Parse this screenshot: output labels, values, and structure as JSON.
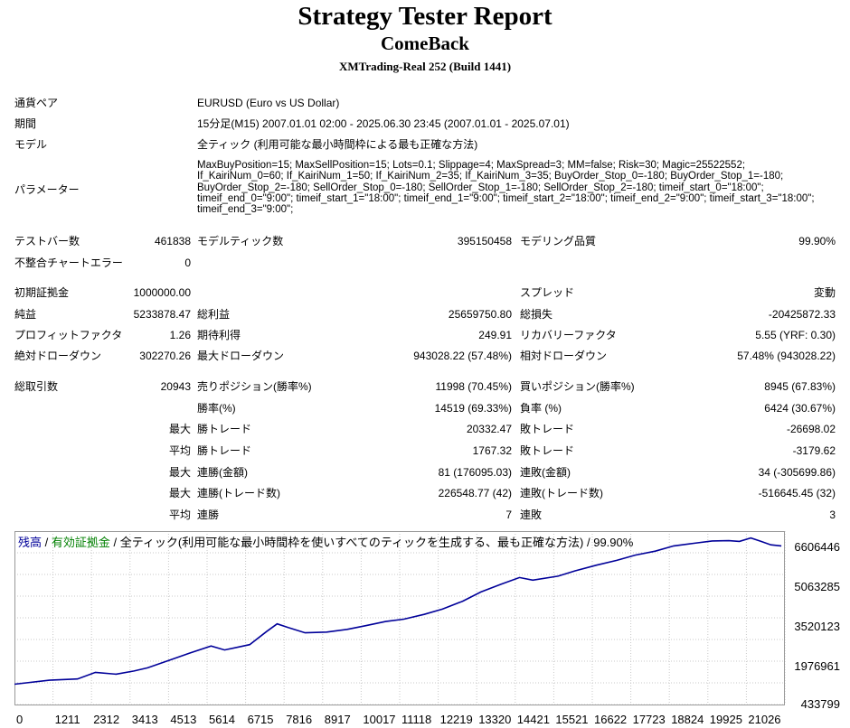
{
  "header": {
    "title": "Strategy Tester Report",
    "ea_name": "ComeBack",
    "server": "XMTrading-Real 252 (Build 1441)"
  },
  "info": {
    "symbol_label": "通貨ペア",
    "symbol_value": "EURUSD (Euro vs US Dollar)",
    "period_label": "期間",
    "period_value": "15分足(M15) 2007.01.01 02:00 - 2025.06.30 23:45 (2007.01.01 - 2025.07.01)",
    "model_label": "モデル",
    "model_value": "全ティック (利用可能な最小時間枠による最も正確な方法)",
    "params_label": "パラメーター",
    "params_value": "MaxBuyPosition=15; MaxSellPosition=15; Lots=0.1; Slippage=4; MaxSpread=3; MM=false; Risk=30; Magic=25522552; If_KairiNum_0=60; If_KairiNum_1=50; If_KairiNum_2=35; If_KairiNum_3=35; BuyOrder_Stop_0=-180; BuyOrder_Stop_1=-180; BuyOrder_Stop_2=-180; SellOrder_Stop_0=-180; SellOrder_Stop_1=-180; SellOrder_Stop_2=-180; timeif_start_0=\"18:00\"; timeif_end_0=\"9:00\"; timeif_start_1=\"18:00\"; timeif_end_1=\"9:00\"; timeif_start_2=\"18:00\"; timeif_end_2=\"9:00\"; timeif_start_3=\"18:00\"; timeif_end_3=\"9:00\";"
  },
  "stats": {
    "bars_label": "テストバー数",
    "bars_value": "461838",
    "ticks_label": "モデルティック数",
    "ticks_value": "395150458",
    "quality_label": "モデリング品質",
    "quality_value": "99.90%",
    "mismatch_label": "不整合チャートエラー",
    "mismatch_value": "0",
    "deposit_label": "初期証拠金",
    "deposit_value": "1000000.00",
    "spread_label": "スプレッド",
    "spread_value": "変動",
    "net_label": "純益",
    "net_value": "5233878.47",
    "gross_profit_label": "総利益",
    "gross_profit_value": "25659750.80",
    "gross_loss_label": "総損失",
    "gross_loss_value": "-20425872.33",
    "pf_label": "プロフィットファクタ",
    "pf_value": "1.26",
    "expected_label": "期待利得",
    "expected_value": "249.91",
    "recovery_label": "リカバリーファクタ",
    "recovery_value": "5.55 (YRF: 0.30)",
    "abs_dd_label": "絶対ドローダウン",
    "abs_dd_value": "302270.26",
    "max_dd_label": "最大ドローダウン",
    "max_dd_value": "943028.22 (57.48%)",
    "rel_dd_label": "相対ドローダウン",
    "rel_dd_value": "57.48% (943028.22)",
    "total_trades_label": "総取引数",
    "total_trades_value": "20943",
    "short_label": "売りポジション(勝率%)",
    "short_value": "11998 (70.45%)",
    "long_label": "買いポジション(勝率%)",
    "long_value": "8945 (67.83%)",
    "win_rate_label": "勝率(%)",
    "win_rate_value": "14519 (69.33%)",
    "loss_rate_label": "負率 (%)",
    "loss_rate_value": "6424 (30.67%)",
    "max_label": "最大",
    "avg_label": "平均",
    "max_win_label": "勝トレード",
    "max_win_value": "20332.47",
    "max_loss_label": "敗トレード",
    "max_loss_value": "-26698.02",
    "avg_win_label": "勝トレード",
    "avg_win_value": "1767.32",
    "avg_loss_label": "敗トレード",
    "avg_loss_value": "-3179.62",
    "max_consec_win_amt_label": "連勝(金額)",
    "max_consec_win_amt_value": "81 (176095.03)",
    "max_consec_loss_amt_label": "連敗(金額)",
    "max_consec_loss_amt_value": "34 (-305699.86)",
    "max_consec_win_cnt_label": "連勝(トレード数)",
    "max_consec_win_cnt_value": "226548.77 (42)",
    "max_consec_loss_cnt_label": "連敗(トレード数)",
    "max_consec_loss_cnt_value": "-516645.45 (32)",
    "avg_consec_win_label": "連勝",
    "avg_consec_win_value": "7",
    "avg_consec_loss_label": "連敗",
    "avg_consec_loss_value": "3"
  },
  "graph": {
    "legend_balance": "残高",
    "legend_sep1": " / ",
    "legend_equity": "有効証拠金",
    "legend_rest": " / 全ティック(利用可能な最小時間枠を使いすべてのティックを生成する、最も正確な方法) / 99.90%",
    "colors": {
      "balance": "#000099",
      "equity": "#008000",
      "grid": "#c8c8c8"
    },
    "y_ticks": [
      "6606446",
      "5063285",
      "3520123",
      "1976961",
      "433799"
    ],
    "x_ticks": [
      "0",
      "1211",
      "2312",
      "3413",
      "4513",
      "5614",
      "6715",
      "7816",
      "8917",
      "10017",
      "11118",
      "12219",
      "13320",
      "14421",
      "15521",
      "16622",
      "17723",
      "18824",
      "19925",
      "21026"
    ]
  },
  "chart_data": {
    "type": "line",
    "series": [
      {
        "name": "残高",
        "x": [
          0,
          1000,
          1800,
          2312,
          2900,
          3413,
          3800,
          4513,
          5000,
          5614,
          6000,
          6715,
          7200,
          7500,
          7816,
          8300,
          8917,
          9500,
          10017,
          10600,
          11118,
          11700,
          12219,
          12800,
          13320,
          13900,
          14421,
          14800,
          15521,
          16000,
          16622,
          17200,
          17723,
          18300,
          18824,
          19400,
          19925,
          20400,
          20700,
          21026,
          21300,
          21600,
          21900
        ],
        "y": [
          1000000,
          1150000,
          1200000,
          1450000,
          1380000,
          1500000,
          1620000,
          1950000,
          2180000,
          2450000,
          2300000,
          2500000,
          3000000,
          3290000,
          3150000,
          2950000,
          2980000,
          3080000,
          3220000,
          3380000,
          3470000,
          3650000,
          3850000,
          4150000,
          4500000,
          4800000,
          5050000,
          4950000,
          5100000,
          5300000,
          5520000,
          5700000,
          5900000,
          6050000,
          6250000,
          6350000,
          6440000,
          6450000,
          6420000,
          6550000,
          6430000,
          6290000,
          6250000
        ]
      }
    ],
    "ylim": [
      433799,
      6606446
    ],
    "xlim": [
      0,
      22000
    ],
    "grid": true
  }
}
